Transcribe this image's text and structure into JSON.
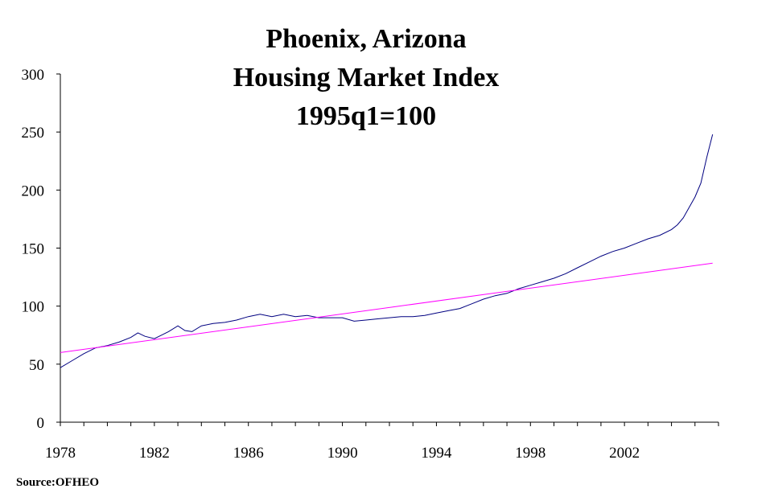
{
  "chart_data": {
    "type": "line",
    "title_lines": [
      "Phoenix, Arizona",
      "Housing Market Index",
      "1995q1=100"
    ],
    "xlabel": "",
    "ylabel": "",
    "source": "Source:OFHEO",
    "xlim": [
      1978,
      2006
    ],
    "ylim": [
      0,
      300
    ],
    "x_ticks": [
      1978,
      1982,
      1986,
      1990,
      1994,
      1998,
      2002
    ],
    "y_ticks": [
      0,
      50,
      100,
      150,
      200,
      250,
      300
    ],
    "grid": false,
    "legend": "none",
    "series": [
      {
        "color": "#000080",
        "x": [
          1978.0,
          1978.5,
          1979.0,
          1979.5,
          1980.0,
          1980.5,
          1981.0,
          1981.3,
          1981.6,
          1982.0,
          1982.3,
          1982.6,
          1983.0,
          1983.3,
          1983.6,
          1984.0,
          1984.5,
          1985.0,
          1985.5,
          1986.0,
          1986.5,
          1987.0,
          1987.5,
          1988.0,
          1988.5,
          1989.0,
          1989.5,
          1990.0,
          1990.5,
          1991.0,
          1991.5,
          1992.0,
          1992.5,
          1993.0,
          1993.5,
          1994.0,
          1994.5,
          1995.0,
          1995.5,
          1996.0,
          1996.5,
          1997.0,
          1997.5,
          1998.0,
          1998.5,
          1999.0,
          1999.5,
          2000.0,
          2000.5,
          2001.0,
          2001.5,
          2002.0,
          2002.5,
          2003.0,
          2003.5,
          2004.0,
          2004.25,
          2004.5,
          2004.75,
          2005.0,
          2005.25,
          2005.5,
          2005.75
        ],
        "values": [
          47,
          53,
          59,
          64,
          66,
          69,
          73,
          77,
          74,
          72,
          75,
          78,
          83,
          79,
          78,
          83,
          85,
          86,
          88,
          91,
          93,
          91,
          93,
          91,
          92,
          90,
          90,
          90,
          87,
          88,
          89,
          90,
          91,
          91,
          92,
          94,
          96,
          98,
          102,
          106,
          109,
          111,
          115,
          118,
          121,
          124,
          128,
          133,
          138,
          143,
          147,
          150,
          154,
          158,
          161,
          166,
          170,
          176,
          185,
          194,
          206,
          228,
          248
        ]
      },
      {
        "color": "#ff00ff",
        "x": [
          1978.0,
          2005.75
        ],
        "values": [
          60,
          137
        ]
      }
    ]
  }
}
